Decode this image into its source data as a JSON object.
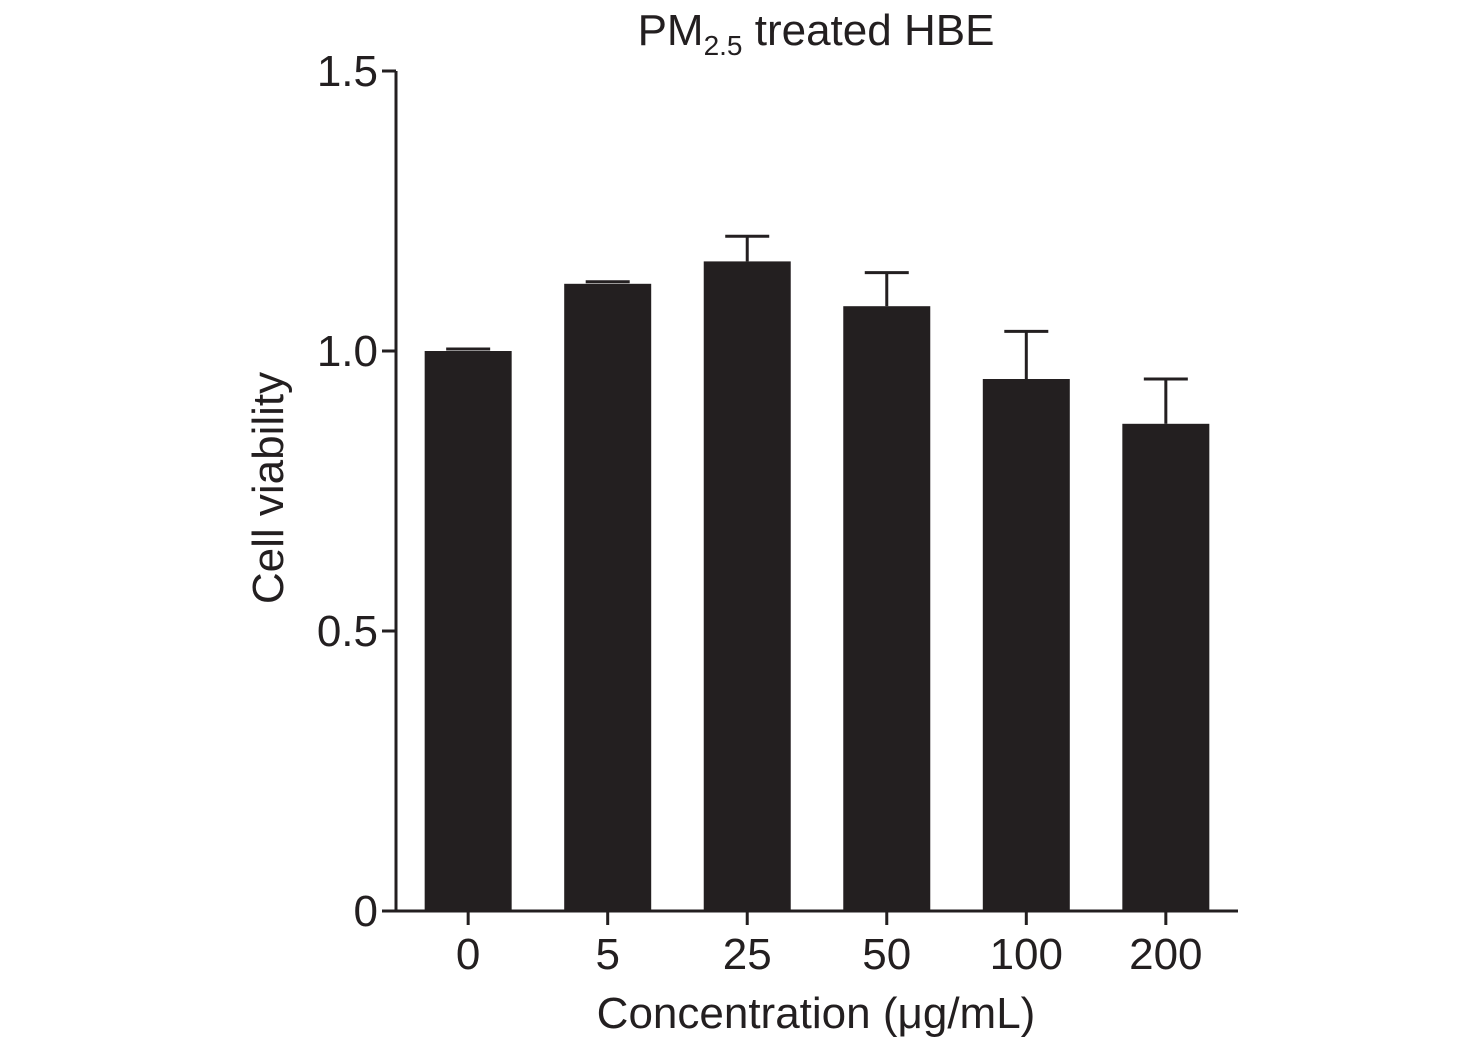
{
  "chart_data": {
    "type": "bar",
    "title": {
      "prefix": "PM",
      "subscript": "2.5",
      "suffix": " treated HBE"
    },
    "xlabel": "Concentration (μg/mL)",
    "ylabel": "Cell viability",
    "categories": [
      "0",
      "5",
      "25",
      "50",
      "100",
      "200"
    ],
    "values": [
      1.0,
      1.12,
      1.16,
      1.08,
      0.95,
      0.87
    ],
    "errors": [
      0.0,
      0.0,
      0.045,
      0.06,
      0.085,
      0.08
    ],
    "ylim": [
      0,
      1.5
    ],
    "yticks": [
      {
        "value": 0,
        "label": "0"
      },
      {
        "value": 0.5,
        "label": "0.5"
      },
      {
        "value": 1.0,
        "label": "1.0"
      },
      {
        "value": 1.5,
        "label": "1.5"
      }
    ],
    "bar_color": "#231f20",
    "axis_color": "#231f20",
    "grid": false,
    "legend": "none"
  }
}
